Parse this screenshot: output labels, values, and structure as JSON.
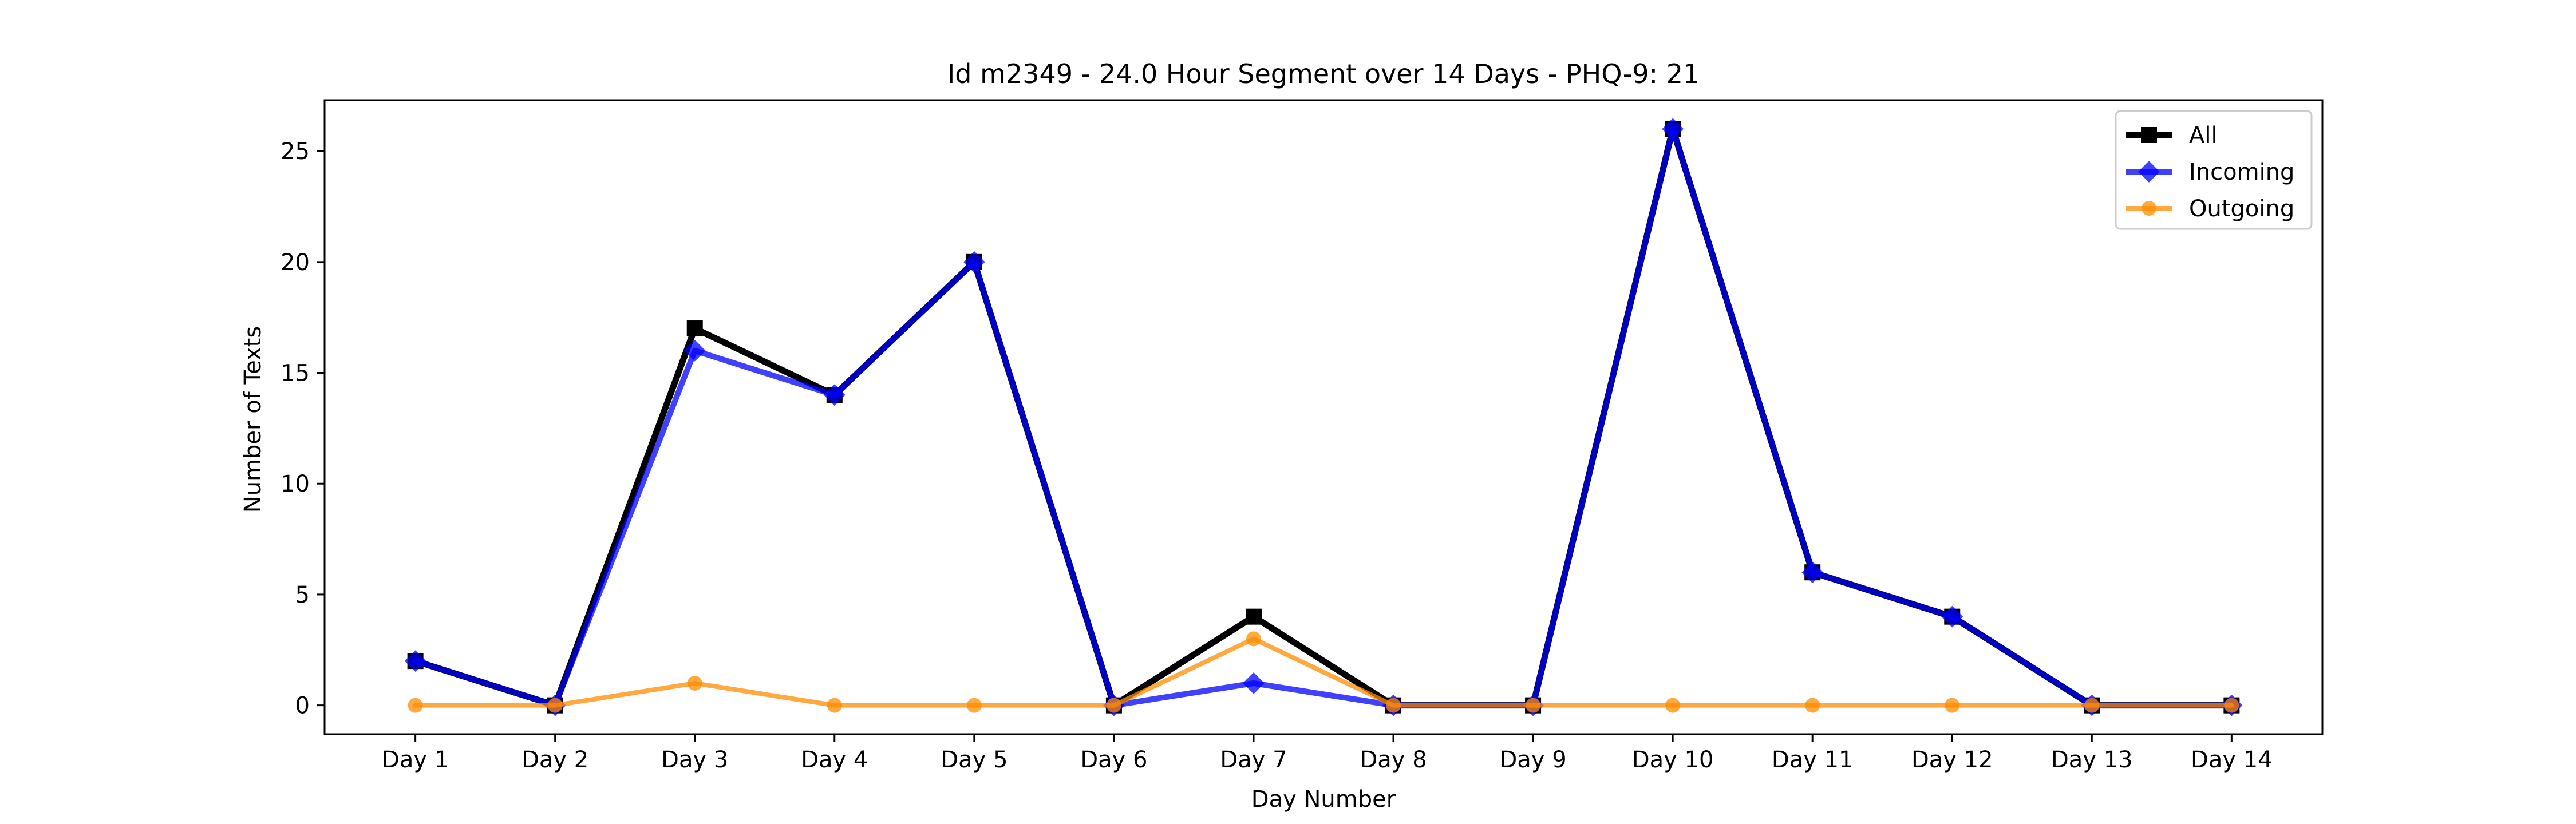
{
  "chart_data": {
    "type": "line",
    "title": "Id m2349 - 24.0 Hour Segment over 14 Days - PHQ-9: 21",
    "xlabel": "Day Number",
    "ylabel": "Number of Texts",
    "categories": [
      "Day 1",
      "Day 2",
      "Day 3",
      "Day 4",
      "Day 5",
      "Day 6",
      "Day 7",
      "Day 8",
      "Day 9",
      "Day 10",
      "Day 11",
      "Day 12",
      "Day 13",
      "Day 14"
    ],
    "ylim": [
      -1.3,
      27.3
    ],
    "yticks": [
      0,
      5,
      10,
      15,
      20,
      25
    ],
    "grid": false,
    "legend_position": "top-right",
    "series": [
      {
        "name": "All",
        "color": "#000000",
        "marker": "square",
        "values": [
          2,
          0,
          17,
          14,
          20,
          0,
          4,
          0,
          0,
          26,
          6,
          4,
          0,
          0
        ]
      },
      {
        "name": "Incoming",
        "color": "#0000ff",
        "marker": "diamond",
        "values": [
          2,
          0,
          16,
          14,
          20,
          0,
          1,
          0,
          0,
          26,
          6,
          4,
          0,
          0
        ]
      },
      {
        "name": "Outgoing",
        "color": "#ff8c00",
        "marker": "circle",
        "values": [
          0,
          0,
          1,
          0,
          0,
          0,
          3,
          0,
          0,
          0,
          0,
          0,
          0,
          0
        ]
      }
    ]
  }
}
